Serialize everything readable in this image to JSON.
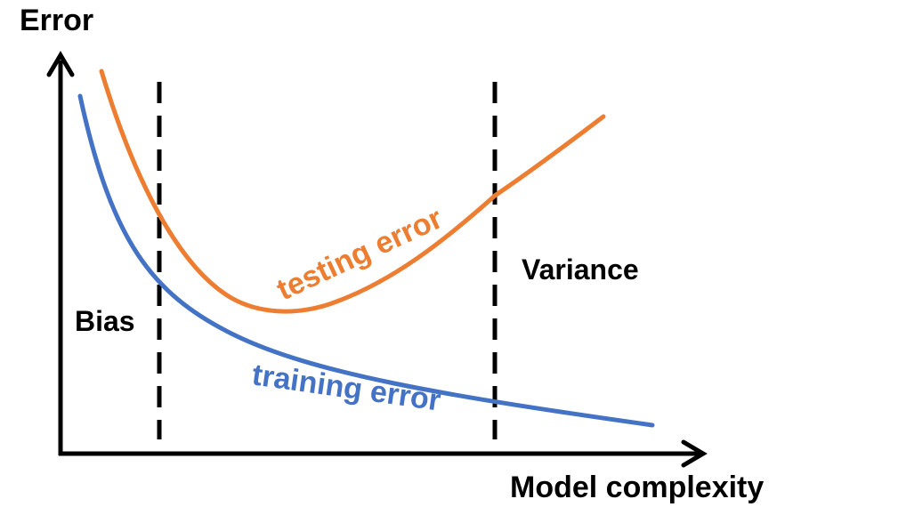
{
  "axes": {
    "y_label": "Error",
    "x_label": "Model complexity"
  },
  "regions": {
    "left_label": "Bias",
    "right_label": "Variance"
  },
  "curves": {
    "testing": {
      "label": "testing error",
      "color": "#ED7D31"
    },
    "training": {
      "label": "training error",
      "color": "#4472C4"
    }
  },
  "colors": {
    "axis": "#000000",
    "divider": "#000000",
    "background": "#ffffff"
  }
}
